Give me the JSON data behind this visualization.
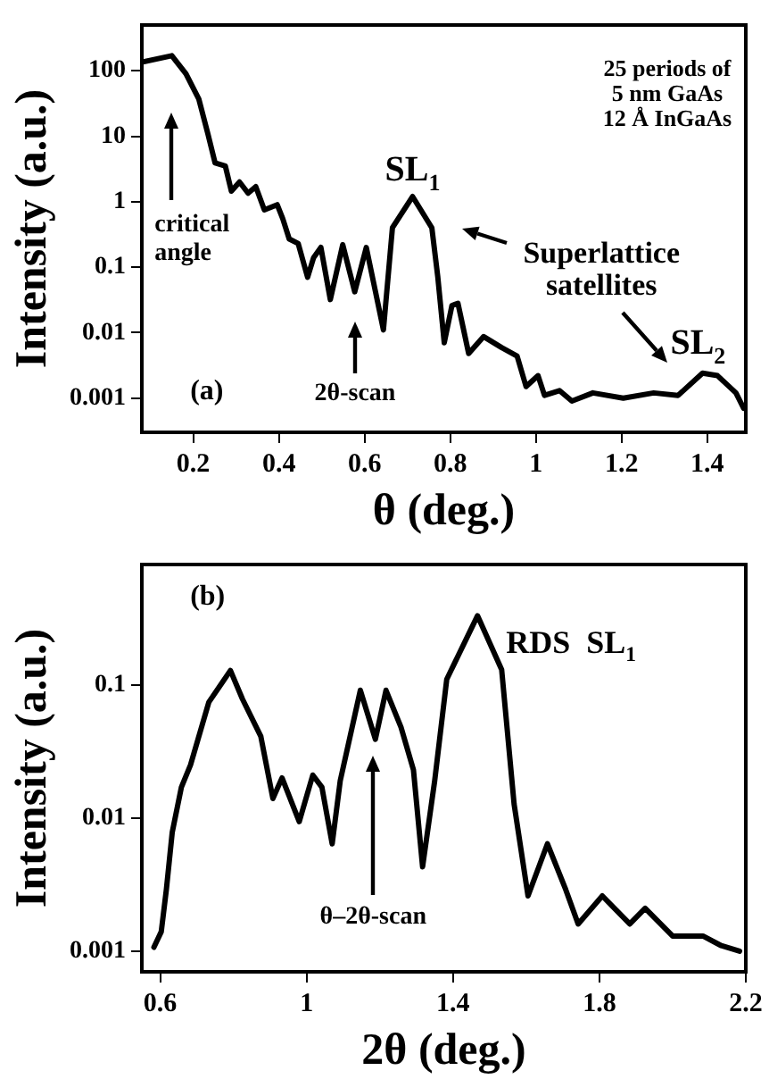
{
  "chart_data": [
    {
      "type": "line",
      "xlabel": "θ (deg.)",
      "ylabel": "Intensity (a.u.)",
      "log": "y",
      "grid": false,
      "legend": false,
      "marker": "none",
      "xlim": [
        0.08,
        1.49
      ],
      "ylim": [
        0.0003,
        500
      ],
      "xticks": [
        0.2,
        0.4,
        0.6,
        0.8,
        1,
        1.2,
        1.4
      ],
      "yticks": [
        0.001,
        0.01,
        0.1,
        1,
        10,
        100
      ],
      "x": [
        0.08,
        0.15,
        0.183,
        0.213,
        0.234,
        0.251,
        0.275,
        0.289,
        0.308,
        0.328,
        0.346,
        0.366,
        0.396,
        0.409,
        0.424,
        0.445,
        0.467,
        0.481,
        0.498,
        0.52,
        0.549,
        0.577,
        0.604,
        0.644,
        0.665,
        0.712,
        0.757,
        0.771,
        0.786,
        0.804,
        0.818,
        0.843,
        0.878,
        0.92,
        0.956,
        0.977,
        1.005,
        1.02,
        1.055,
        1.084,
        1.133,
        1.204,
        1.275,
        1.332,
        1.389,
        1.424,
        1.467,
        1.485
      ],
      "series": [
        {
          "color": "#000000",
          "values": [
            135,
            170,
            90,
            37,
            11,
            3.9,
            3.5,
            1.45,
            2,
            1.35,
            1.7,
            0.75,
            0.9,
            0.55,
            0.27,
            0.23,
            0.07,
            0.14,
            0.2,
            0.032,
            0.22,
            0.042,
            0.2,
            0.011,
            0.4,
            1.2,
            0.4,
            0.07,
            0.007,
            0.026,
            0.028,
            0.0048,
            0.0087,
            0.0059,
            0.0044,
            0.0015,
            0.0022,
            0.0011,
            0.0013,
            0.0009,
            0.0012,
            0.001,
            0.0012,
            0.0011,
            0.0024,
            0.0022,
            0.0012,
            0.0007
          ]
        }
      ],
      "annotations": [
        "25 periods of\n5 nm GaAs\n12 Å InGaAs",
        "critical\nangle",
        {
          "text": "SL$_{1}$",
          "x": 0.712,
          "y": 1.2
        },
        "Superlattice\nsatellites",
        {
          "text": "SL$_{2}$",
          "x": 1.42,
          "y": 0.0024
        },
        "(a)",
        "2θ-scan"
      ]
    },
    {
      "type": "line",
      "xlabel": "2θ (deg.)",
      "ylabel": "Intensity (a.u.)",
      "log": "y",
      "grid": false,
      "legend": false,
      "marker": "none",
      "xlim": [
        0.55,
        2.2
      ],
      "ylim": [
        0.0007,
        0.8
      ],
      "xticks": [
        0.6,
        1,
        1.4,
        1.8,
        2.2
      ],
      "yticks": [
        0.001,
        0.01,
        0.1
      ],
      "x": [
        0.583,
        0.603,
        0.617,
        0.633,
        0.658,
        0.683,
        0.733,
        0.792,
        0.825,
        0.875,
        0.908,
        0.933,
        0.98,
        1.017,
        1.042,
        1.07,
        1.092,
        1.147,
        1.188,
        1.217,
        1.258,
        1.292,
        1.317,
        1.35,
        1.383,
        1.467,
        1.533,
        1.567,
        1.605,
        1.658,
        1.708,
        1.742,
        1.808,
        1.883,
        1.925,
        2.0,
        2.083,
        2.133,
        2.183
      ],
      "series": [
        {
          "color": "#000000",
          "values": [
            0.00107,
            0.0014,
            0.0029,
            0.0078,
            0.017,
            0.025,
            0.074,
            0.128,
            0.078,
            0.041,
            0.014,
            0.02,
            0.0094,
            0.021,
            0.017,
            0.0064,
            0.019,
            0.091,
            0.039,
            0.091,
            0.048,
            0.023,
            0.0043,
            0.019,
            0.11,
            0.33,
            0.13,
            0.0127,
            0.0026,
            0.0064,
            0.0029,
            0.0016,
            0.0026,
            0.0016,
            0.0021,
            0.0013,
            0.0013,
            0.0011,
            0.001
          ]
        }
      ],
      "annotations": [
        "(b)",
        {
          "text": "RDS  SL$_{1}$",
          "x": 1.467,
          "y": 0.33
        },
        "θ–2θ-scan"
      ]
    }
  ]
}
